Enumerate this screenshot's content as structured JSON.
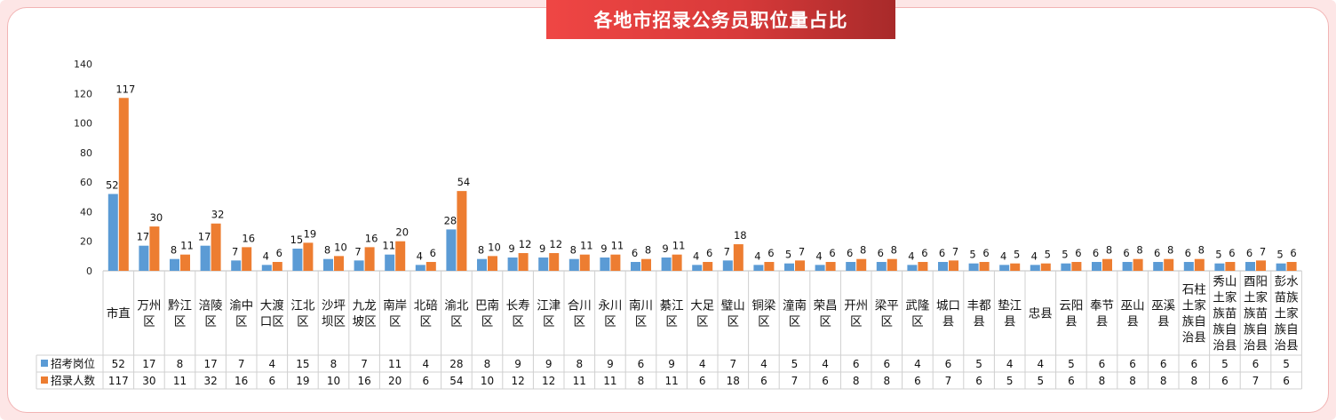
{
  "colors": {
    "series1": "#5b9bd5",
    "series2": "#ed7d31",
    "title_bg": "#e84343",
    "frame": "#fde6e6"
  },
  "chart_data": {
    "type": "bar",
    "title": "各地市招录公务员职位量占比",
    "ylim": [
      0,
      140
    ],
    "yticks": [
      0,
      20,
      40,
      60,
      80,
      100,
      120,
      140
    ],
    "grid": false,
    "legend": "table-left",
    "categories": [
      "市直",
      "万州区",
      "黔江区",
      "涪陵区",
      "渝中区",
      "大渡口区",
      "江北区",
      "沙坪坝区",
      "九龙坡区",
      "南岸区",
      "北碚区",
      "渝北区",
      "巴南区",
      "长寿区",
      "江津区",
      "合川区",
      "永川区",
      "南川区",
      "綦江区",
      "大足区",
      "璧山区",
      "铜梁区",
      "潼南区",
      "荣昌区",
      "开州区",
      "梁平区",
      "武隆区",
      "城口县",
      "丰都县",
      "垫江县",
      "忠县",
      "云阳县",
      "奉节县",
      "巫山县",
      "巫溪县",
      "石柱土家族自治县",
      "秀山土家族苗族自治县",
      "酉阳土家族苗族自治县",
      "彭水苗族土家族自治县"
    ],
    "category_lines": [
      [
        "市直"
      ],
      [
        "万州",
        "区"
      ],
      [
        "黔江",
        "区"
      ],
      [
        "涪陵",
        "区"
      ],
      [
        "渝中",
        "区"
      ],
      [
        "大渡",
        "口区"
      ],
      [
        "江北",
        "区"
      ],
      [
        "沙坪",
        "坝区"
      ],
      [
        "九龙",
        "坡区"
      ],
      [
        "南岸",
        "区"
      ],
      [
        "北碚",
        "区"
      ],
      [
        "渝北",
        "区"
      ],
      [
        "巴南",
        "区"
      ],
      [
        "长寿",
        "区"
      ],
      [
        "江津",
        "区"
      ],
      [
        "合川",
        "区"
      ],
      [
        "永川",
        "区"
      ],
      [
        "南川",
        "区"
      ],
      [
        "綦江",
        "区"
      ],
      [
        "大足",
        "区"
      ],
      [
        "璧山",
        "区"
      ],
      [
        "铜梁",
        "区"
      ],
      [
        "潼南",
        "区"
      ],
      [
        "荣昌",
        "区"
      ],
      [
        "开州",
        "区"
      ],
      [
        "梁平",
        "区"
      ],
      [
        "武隆",
        "区"
      ],
      [
        "城口",
        "县"
      ],
      [
        "丰都",
        "县"
      ],
      [
        "垫江",
        "县"
      ],
      [
        "忠县"
      ],
      [
        "云阳",
        "县"
      ],
      [
        "奉节",
        "县"
      ],
      [
        "巫山",
        "县"
      ],
      [
        "巫溪",
        "县"
      ],
      [
        "石柱",
        "土家",
        "族自",
        "治县"
      ],
      [
        "秀山",
        "土家",
        "族苗",
        "族自",
        "治县"
      ],
      [
        "酉阳",
        "土家",
        "族苗",
        "族自",
        "治县"
      ],
      [
        "彭水",
        "苗族",
        "土家",
        "族自",
        "治县"
      ]
    ],
    "series": [
      {
        "name": "招考岗位",
        "values": [
          52,
          17,
          8,
          17,
          7,
          4,
          15,
          8,
          7,
          11,
          4,
          28,
          8,
          9,
          9,
          8,
          9,
          6,
          9,
          4,
          7,
          4,
          5,
          4,
          6,
          6,
          4,
          6,
          5,
          4,
          4,
          5,
          6,
          6,
          6,
          6,
          5,
          6,
          5
        ]
      },
      {
        "name": "招录人数",
        "values": [
          117,
          30,
          11,
          32,
          16,
          6,
          19,
          10,
          16,
          20,
          6,
          54,
          10,
          12,
          12,
          11,
          11,
          8,
          11,
          6,
          18,
          6,
          7,
          6,
          8,
          8,
          6,
          7,
          6,
          5,
          5,
          6,
          8,
          8,
          8,
          8,
          6,
          7,
          6
        ]
      }
    ]
  }
}
